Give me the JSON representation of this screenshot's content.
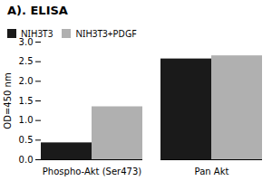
{
  "chart_data": {
    "type": "bar",
    "title": "A). ELISA",
    "categories": [
      "Phospho-Akt (Ser473)",
      "Pan Akt"
    ],
    "series": [
      {
        "name": "NIH3T3",
        "color": "#1a1a1a",
        "values": [
          0.43,
          2.57
        ]
      },
      {
        "name": "NIH3T3+PDGF",
        "color": "#b0b0b0",
        "values": [
          1.35,
          2.65
        ]
      }
    ],
    "ylabel": "OD=450 nm",
    "ylim": [
      0,
      3.0
    ],
    "yticks": [
      {
        "value": 0.0,
        "label": "0.0"
      },
      0.5,
      {
        "value": 1.0,
        "label": "1.0"
      },
      1.5,
      {
        "value": 2.0,
        "label": "2.0"
      },
      2.5,
      {
        "value": 3.0,
        "label": "3.0"
      }
    ],
    "legend": "upper left"
  }
}
